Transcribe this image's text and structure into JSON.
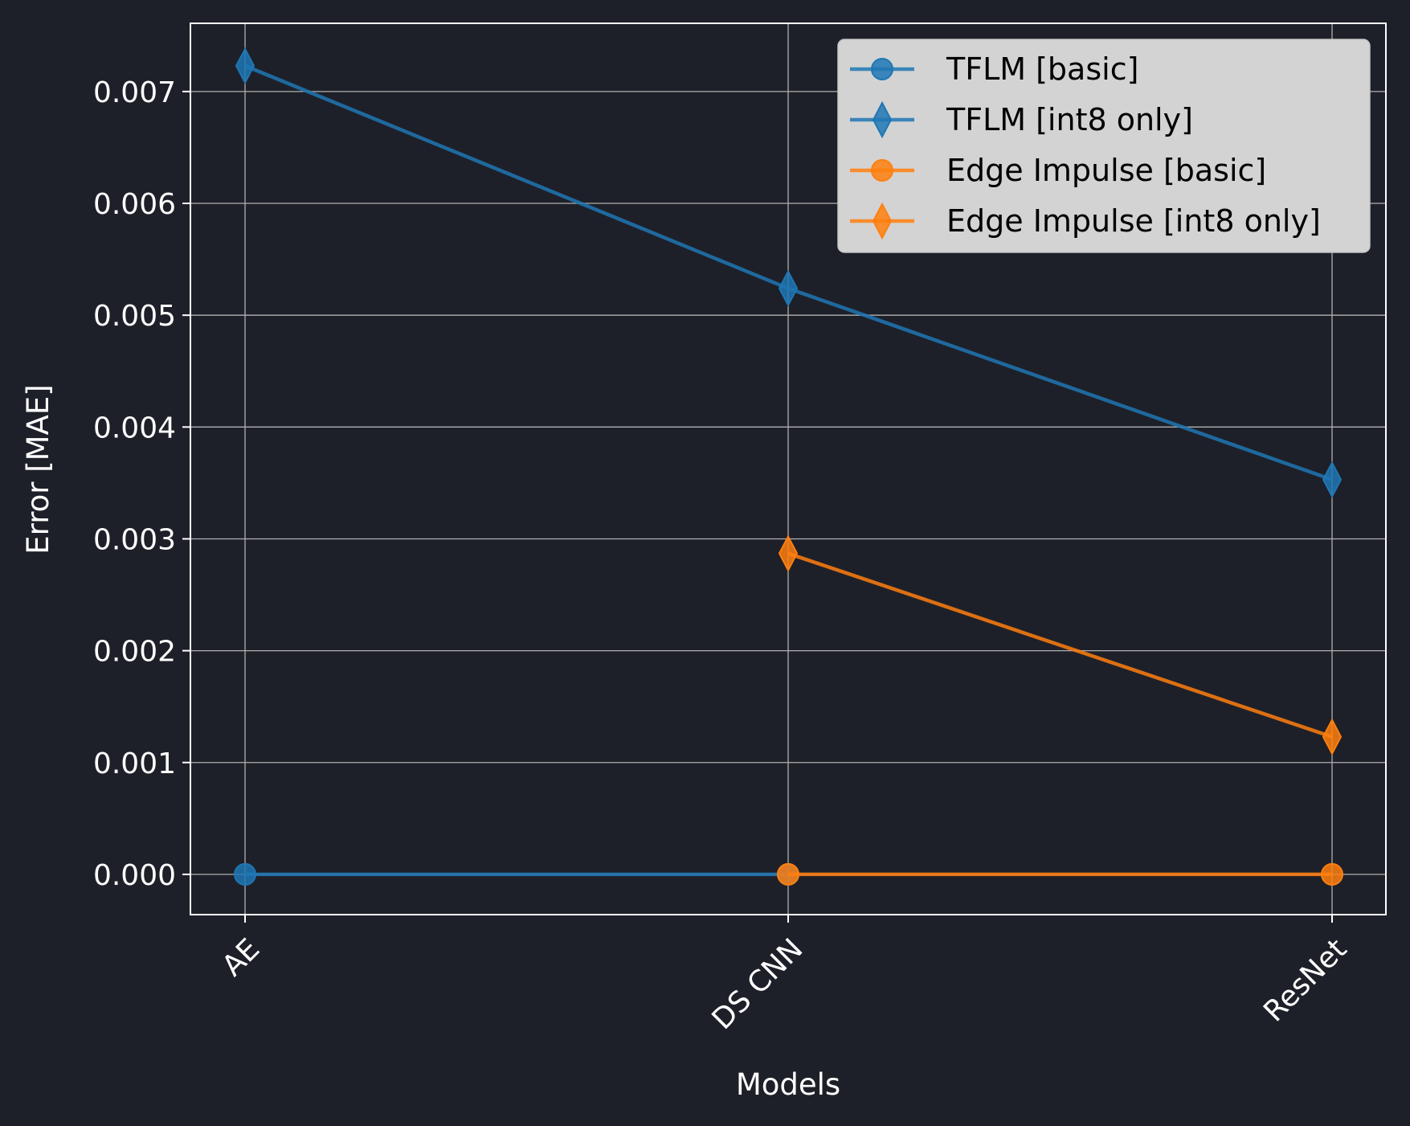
{
  "chart_data": {
    "type": "line",
    "title": "",
    "xlabel": "Models",
    "ylabel": "Error [MAE]",
    "categories": [
      "AE",
      "DS CNN",
      "ResNet"
    ],
    "ylim": [
      -0.00036,
      0.00761
    ],
    "yticks": [
      "0.000",
      "0.001",
      "0.002",
      "0.003",
      "0.004",
      "0.005",
      "0.006",
      "0.007"
    ],
    "grid": true,
    "legend_position": "top-right",
    "series": [
      {
        "name": "TFLM [basic]",
        "marker": "circle",
        "color": "#1f77b4",
        "values": [
          0.0,
          0.0,
          null
        ]
      },
      {
        "name": "TFLM [int8 only]",
        "marker": "diamond",
        "color": "#1f77b4",
        "values": [
          0.00723,
          0.00524,
          0.00353
        ]
      },
      {
        "name": "Edge Impulse [basic]",
        "marker": "circle",
        "color": "#ff7f0e",
        "values": [
          null,
          0.0,
          0.0
        ]
      },
      {
        "name": "Edge Impulse [int8 only]",
        "marker": "diamond",
        "color": "#ff7f0e",
        "values": [
          null,
          0.00287,
          0.00123
        ]
      }
    ]
  }
}
